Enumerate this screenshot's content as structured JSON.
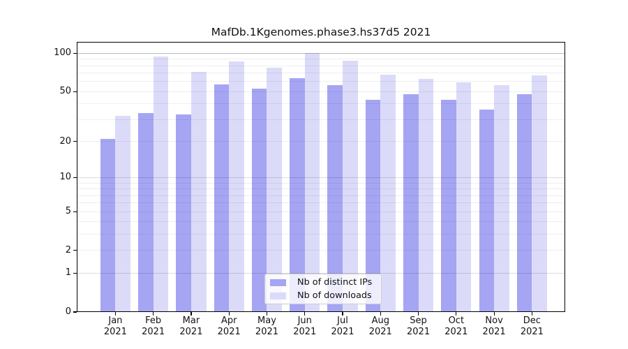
{
  "title": "MafDb.1Kgenomes.phase3.hs37d5 2021",
  "colors": {
    "distinct_ips": "#a5a5f3",
    "downloads": "#dbdbf9",
    "grid_major": "#bcbcbc",
    "grid_mid": "#dadada",
    "grid_minor": "#eeeeee",
    "axis": "#000000"
  },
  "legend": {
    "items": [
      {
        "id": "distinct_ips",
        "label": "Nb of distinct IPs"
      },
      {
        "id": "downloads",
        "label": "Nb of downloads"
      }
    ]
  },
  "chart_data": {
    "type": "bar",
    "title": "MafDb.1Kgenomes.phase3.hs37d5 2021",
    "categories": [
      "Jan 2021",
      "Feb 2021",
      "Mar 2021",
      "Apr 2021",
      "May 2021",
      "Jun 2021",
      "Jul 2021",
      "Aug 2021",
      "Sep 2021",
      "Oct 2021",
      "Nov 2021",
      "Dec 2021"
    ],
    "series": [
      {
        "name": "Nb of distinct IPs",
        "color": "#a5a5f3",
        "values": [
          21,
          34,
          33,
          57,
          53,
          64,
          56,
          43,
          48,
          43,
          36,
          48
        ]
      },
      {
        "name": "Nb of downloads",
        "color": "#dbdbf9",
        "values": [
          32,
          95,
          72,
          87,
          77,
          100,
          88,
          68,
          63,
          59,
          56,
          67
        ]
      }
    ],
    "xlabel": "",
    "ylabel": "",
    "yscale": "log1p",
    "yticks": [
      0,
      1,
      2,
      5,
      10,
      20,
      50,
      100
    ],
    "ylim": [
      0,
      122
    ],
    "grid": true,
    "legend_position": "lower center"
  }
}
